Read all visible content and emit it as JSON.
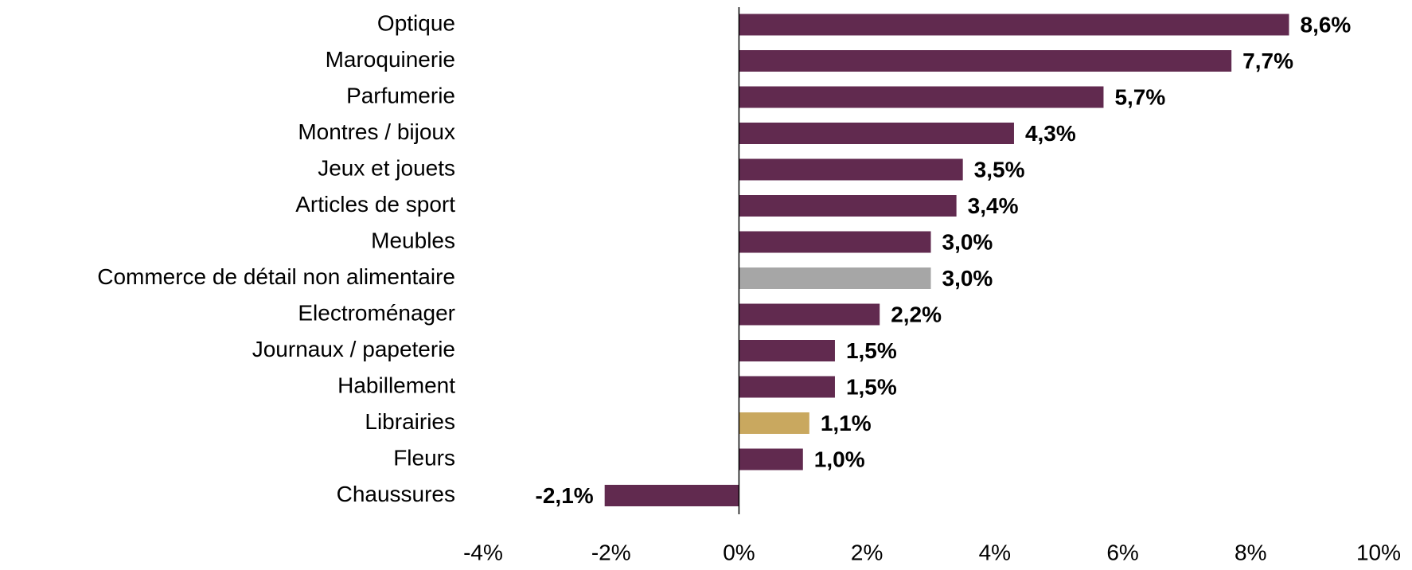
{
  "chart_data": {
    "type": "barh",
    "categories": [
      "Optique",
      "Maroquinerie",
      "Parfumerie",
      "Montres / bijoux",
      "Jeux et jouets",
      "Articles de sport",
      "Meubles",
      "Commerce de détail non alimentaire",
      "Electroménager",
      "Journaux / papeterie",
      "Habillement",
      "Librairies",
      "Fleurs",
      "Chaussures"
    ],
    "values": [
      8.6,
      7.7,
      5.7,
      4.3,
      3.5,
      3.4,
      3.0,
      3.0,
      2.2,
      1.5,
      1.5,
      1.1,
      1.0,
      -2.1
    ],
    "value_labels": [
      "8,6%",
      "7,7%",
      "5,7%",
      "4,3%",
      "3,5%",
      "3,4%",
      "3,0%",
      "3,0%",
      "2,2%",
      "1,5%",
      "1,5%",
      "1,1%",
      "1,0%",
      "-2,1%"
    ],
    "colors": [
      "#612a4f",
      "#612a4f",
      "#612a4f",
      "#612a4f",
      "#612a4f",
      "#612a4f",
      "#612a4f",
      "#a6a6a6",
      "#612a4f",
      "#612a4f",
      "#612a4f",
      "#c9a85f",
      "#612a4f",
      "#612a4f"
    ],
    "xlim": [
      -4,
      10
    ],
    "xticks": [
      {
        "value": -4,
        "label": "-4%"
      },
      {
        "value": -2,
        "label": "-2%"
      },
      {
        "value": 0,
        "label": "0%"
      },
      {
        "value": 2,
        "label": "2%"
      },
      {
        "value": 4,
        "label": "4%"
      },
      {
        "value": 6,
        "label": "6%"
      },
      {
        "value": 8,
        "label": "8%"
      },
      {
        "value": 10,
        "label": "10%"
      }
    ],
    "grid": false
  }
}
